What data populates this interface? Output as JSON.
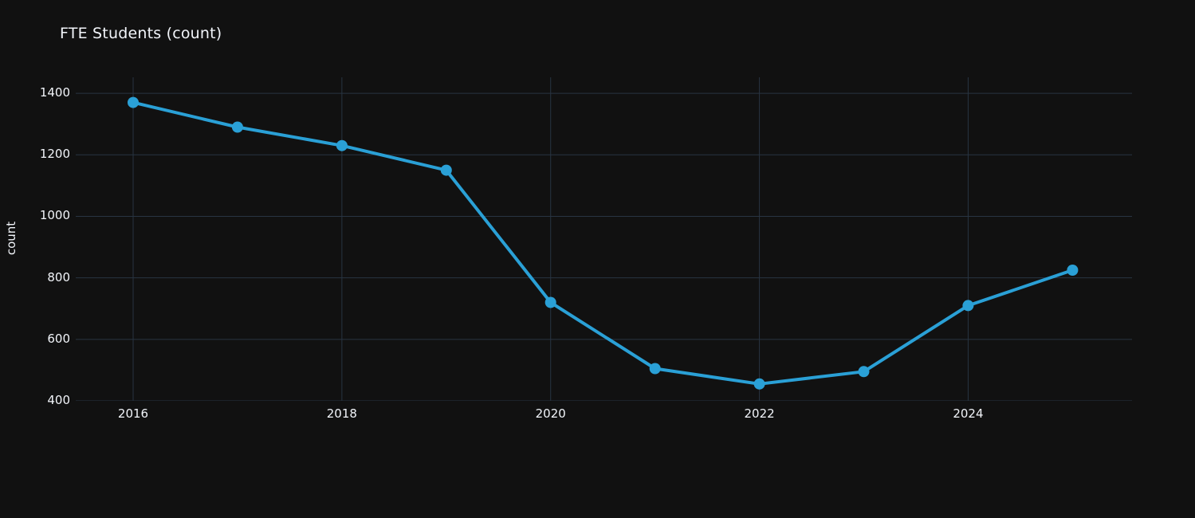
{
  "chart_data": {
    "type": "line",
    "title": "FTE Students (count)",
    "xlabel": "",
    "ylabel": "count",
    "x": [
      2016,
      2017,
      2018,
      2019,
      2020,
      2021,
      2022,
      2023,
      2024,
      2025
    ],
    "series": [
      {
        "name": "FTE Students",
        "values": [
          1370,
          1290,
          1230,
          1150,
          720,
          505,
          455,
          495,
          710,
          825
        ]
      }
    ],
    "x_ticks": [
      2016,
      2018,
      2020,
      2022,
      2024
    ],
    "y_ticks": [
      400,
      600,
      800,
      1000,
      1200,
      1400
    ],
    "xlim": [
      2015.45,
      2025.57
    ],
    "ylim": [
      400,
      1452
    ],
    "grid": true,
    "legend": "none",
    "colors": {
      "line": "#2aa0d6",
      "marker": "#2aa0d6",
      "grid": "#283442",
      "text": "#f2f5fa",
      "background": "#111111"
    }
  }
}
